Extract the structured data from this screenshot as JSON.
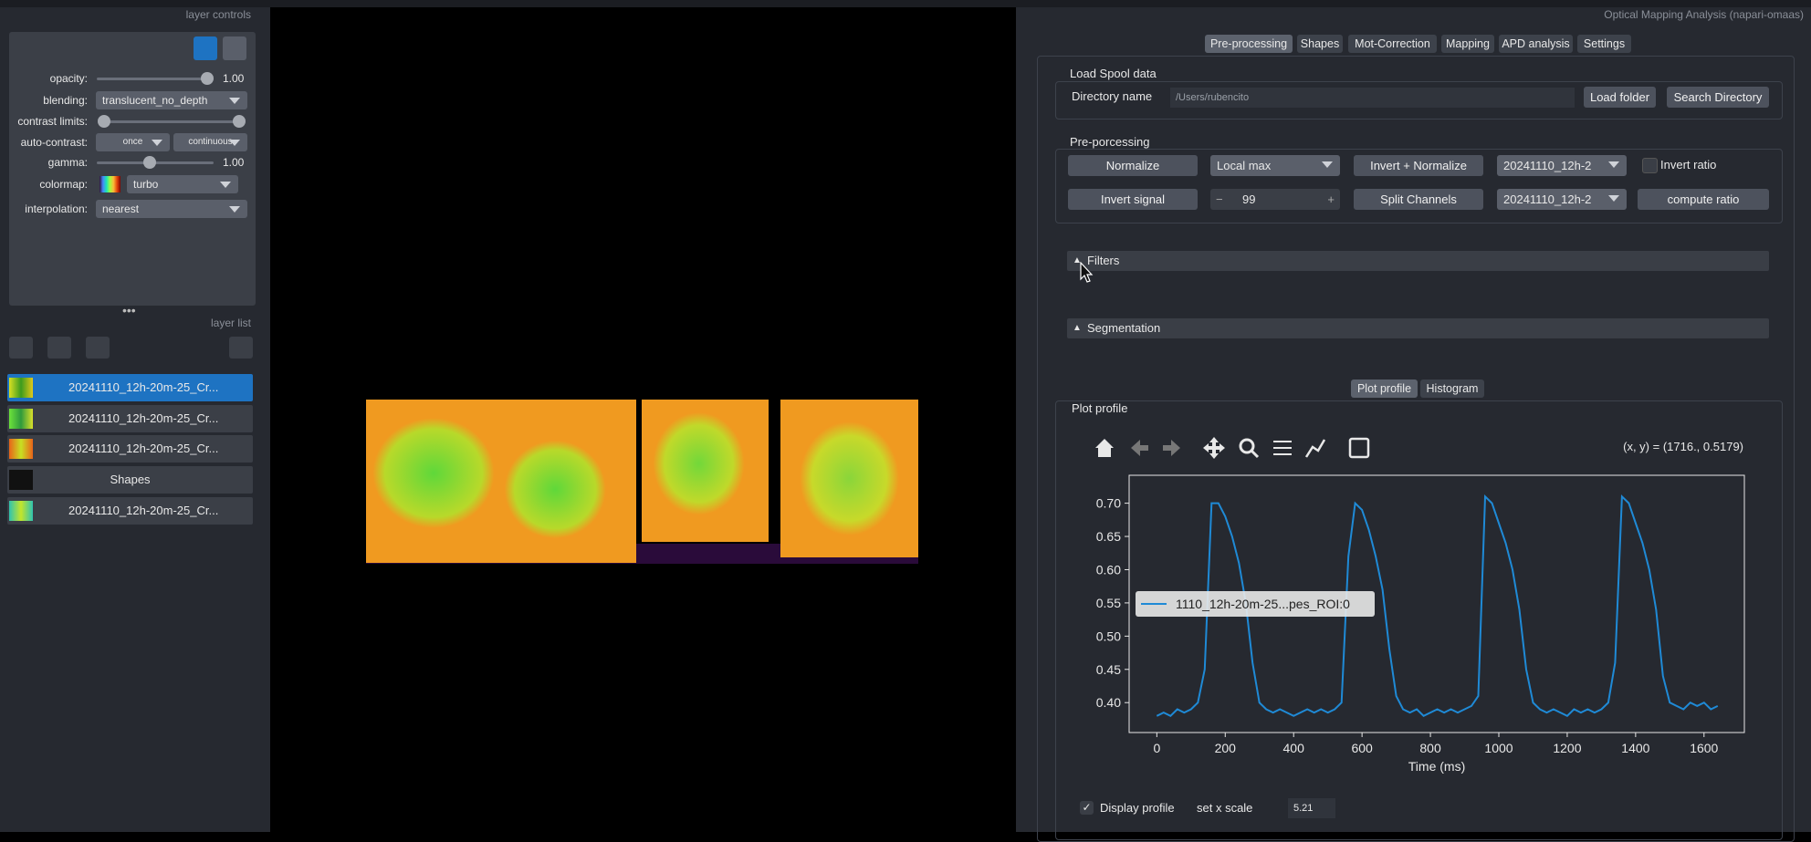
{
  "layer_controls": {
    "title": "layer controls",
    "opacity_label": "opacity:",
    "opacity_value": "1.00",
    "blending_label": "blending:",
    "blending": "translucent_no_depth",
    "contrast_label": "contrast limits:",
    "autocontrast_label": "auto-contrast:",
    "once": "once",
    "continuous": "continuous",
    "gamma_label": "gamma:",
    "gamma_value": "1.00",
    "colormap_label": "colormap:",
    "colormap": "turbo",
    "interpolation_label": "interpolation:",
    "interpolation": "nearest"
  },
  "layer_list": {
    "title": "layer list",
    "layers": [
      "20241110_12h-20m-25_Cr...",
      "20241110_12h-20m-25_Cr...",
      "20241110_12h-20m-25_Cr...",
      "Shapes",
      "20241110_12h-20m-25_Cr..."
    ]
  },
  "panel": {
    "title": "Optical Mapping Analysis (napari-omaas)",
    "tabs": [
      "Pre-processing",
      "Shapes",
      "Mot-Correction",
      "Mapping",
      "APD analysis",
      "Settings"
    ],
    "load": {
      "title": "Load Spool data",
      "dir_label": "Directory name",
      "dir_value": "/Users/rubencito",
      "load_folder": "Load folder",
      "search": "Search Directory"
    },
    "preprocessing": {
      "title": "Pre-porcessing",
      "normalize": "Normalize",
      "method": "Local max",
      "invert_normalize": "Invert + Normalize",
      "image1": "20241110_12h-2",
      "invert_ratio": "Invert ratio",
      "invert_signal": "Invert signal",
      "spin": "99",
      "split": "Split Channels",
      "image2": "20241110_12h-2",
      "compute_ratio": "compute ratio"
    },
    "filters": "Filters",
    "segmentation": "Segmentation",
    "plot_tabs": [
      "Plot profile",
      "Histogram"
    ],
    "plot_group": "Plot profile",
    "coords": "(x, y) = (1716., 0.5179)",
    "display_profile": "Display profile",
    "x_scale_label": "set x scale",
    "x_scale": "5.21"
  },
  "plot": {
    "type": "line",
    "xlabel": "Time (ms)",
    "xlim": [
      -81,
      1718
    ],
    "ylim": [
      0.355,
      0.742
    ],
    "xticks": [
      0,
      200,
      400,
      600,
      800,
      1000,
      1200,
      1400,
      1600
    ],
    "yticks": [
      {
        "value": 0.4,
        "label": "0.40"
      },
      {
        "value": 0.45,
        "label": "0.45"
      },
      {
        "value": 0.5,
        "label": "0.50"
      },
      {
        "value": 0.55,
        "label": "0.55"
      },
      {
        "value": 0.6,
        "label": "0.60"
      },
      {
        "value": 0.65,
        "label": "0.65"
      },
      {
        "value": 0.7,
        "label": "0.70"
      }
    ],
    "x": [
      0,
      20,
      40,
      60,
      80,
      100,
      120,
      140,
      160,
      180,
      200,
      220,
      240,
      260,
      280,
      300,
      320,
      340,
      360,
      380,
      400,
      420,
      440,
      460,
      480,
      500,
      520,
      540,
      560,
      580,
      600,
      620,
      640,
      660,
      680,
      700,
      720,
      740,
      760,
      780,
      800,
      820,
      840,
      860,
      880,
      900,
      920,
      940,
      960,
      980,
      1000,
      1020,
      1040,
      1060,
      1080,
      1100,
      1120,
      1140,
      1160,
      1180,
      1200,
      1220,
      1240,
      1260,
      1280,
      1300,
      1320,
      1340,
      1360,
      1380,
      1400,
      1420,
      1440,
      1460,
      1480,
      1500,
      1520,
      1540,
      1560,
      1580,
      1600,
      1620,
      1640
    ],
    "series": [
      {
        "name": "1110_12h-20m-25...pes_ROI:0",
        "color": "#1f8ad6",
        "values": [
          0.38,
          0.385,
          0.38,
          0.39,
          0.385,
          0.39,
          0.4,
          0.45,
          0.7,
          0.7,
          0.68,
          0.65,
          0.61,
          0.55,
          0.46,
          0.4,
          0.39,
          0.385,
          0.39,
          0.385,
          0.38,
          0.385,
          0.39,
          0.385,
          0.39,
          0.385,
          0.39,
          0.4,
          0.62,
          0.7,
          0.69,
          0.66,
          0.62,
          0.57,
          0.48,
          0.41,
          0.39,
          0.385,
          0.39,
          0.38,
          0.385,
          0.39,
          0.385,
          0.39,
          0.385,
          0.39,
          0.395,
          0.41,
          0.71,
          0.7,
          0.67,
          0.64,
          0.6,
          0.54,
          0.45,
          0.4,
          0.39,
          0.385,
          0.39,
          0.385,
          0.38,
          0.39,
          0.385,
          0.39,
          0.385,
          0.39,
          0.4,
          0.46,
          0.71,
          0.7,
          0.67,
          0.64,
          0.6,
          0.54,
          0.44,
          0.4,
          0.395,
          0.39,
          0.4,
          0.395,
          0.4,
          0.39,
          0.395
        ]
      }
    ]
  }
}
